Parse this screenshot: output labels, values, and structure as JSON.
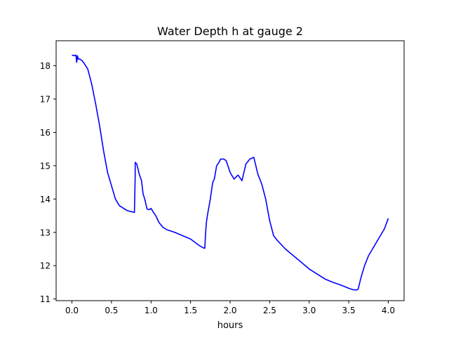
{
  "chart_data": {
    "type": "line",
    "title": "Water Depth h at gauge 2",
    "xlabel": "hours",
    "ylabel": "",
    "xlim": [
      -0.2,
      4.2
    ],
    "ylim": [
      10.95,
      18.75
    ],
    "xticks": [
      0.0,
      0.5,
      1.0,
      1.5,
      2.0,
      2.5,
      3.0,
      3.5,
      4.0
    ],
    "xtick_labels": [
      "0.0",
      "0.5",
      "1.0",
      "1.5",
      "2.0",
      "2.5",
      "3.0",
      "3.5",
      "4.0"
    ],
    "yticks": [
      11,
      12,
      13,
      14,
      15,
      16,
      17,
      18
    ],
    "ytick_labels": [
      "11",
      "12",
      "13",
      "14",
      "15",
      "16",
      "17",
      "18"
    ],
    "grid": false,
    "series": [
      {
        "color": "#0000ff",
        "x": [
          0.0,
          0.03,
          0.05,
          0.06,
          0.07,
          0.08,
          0.1,
          0.13,
          0.16,
          0.2,
          0.25,
          0.3,
          0.35,
          0.4,
          0.45,
          0.5,
          0.55,
          0.6,
          0.7,
          0.79,
          0.8,
          0.8,
          0.82,
          0.85,
          0.88,
          0.9,
          0.92,
          0.95,
          0.98,
          1.0,
          1.03,
          1.06,
          1.1,
          1.15,
          1.2,
          1.3,
          1.4,
          1.5,
          1.6,
          1.65,
          1.68,
          1.69,
          1.7,
          1.72,
          1.75,
          1.78,
          1.8,
          1.83,
          1.86,
          1.88,
          1.92,
          1.95,
          2.0,
          2.05,
          2.1,
          2.15,
          2.2,
          2.25,
          2.3,
          2.35,
          2.4,
          2.45,
          2.5,
          2.55,
          2.6,
          2.7,
          2.8,
          2.9,
          3.0,
          3.1,
          3.2,
          3.3,
          3.4,
          3.5,
          3.55,
          3.6,
          3.62,
          3.65,
          3.7,
          3.75,
          3.8,
          3.85,
          3.9,
          3.95,
          4.0
        ],
        "y": [
          18.32,
          18.3,
          18.32,
          18.1,
          18.3,
          18.2,
          18.2,
          18.15,
          18.05,
          17.9,
          17.45,
          16.85,
          16.2,
          15.45,
          14.8,
          14.4,
          14.0,
          13.8,
          13.65,
          13.6,
          14.7,
          15.1,
          15.05,
          14.75,
          14.55,
          14.15,
          14.0,
          13.7,
          13.68,
          13.72,
          13.6,
          13.5,
          13.3,
          13.15,
          13.08,
          13.0,
          12.9,
          12.8,
          12.62,
          12.55,
          12.52,
          13.0,
          13.3,
          13.6,
          14.0,
          14.5,
          14.6,
          15.0,
          15.1,
          15.2,
          15.2,
          15.15,
          14.8,
          14.6,
          14.72,
          14.55,
          15.05,
          15.2,
          15.25,
          14.75,
          14.45,
          14.0,
          13.35,
          12.9,
          12.75,
          12.5,
          12.3,
          12.1,
          11.9,
          11.75,
          11.6,
          11.5,
          11.42,
          11.32,
          11.28,
          11.27,
          11.3,
          11.6,
          12.0,
          12.3,
          12.5,
          12.7,
          12.9,
          13.1,
          13.42
        ]
      }
    ]
  }
}
